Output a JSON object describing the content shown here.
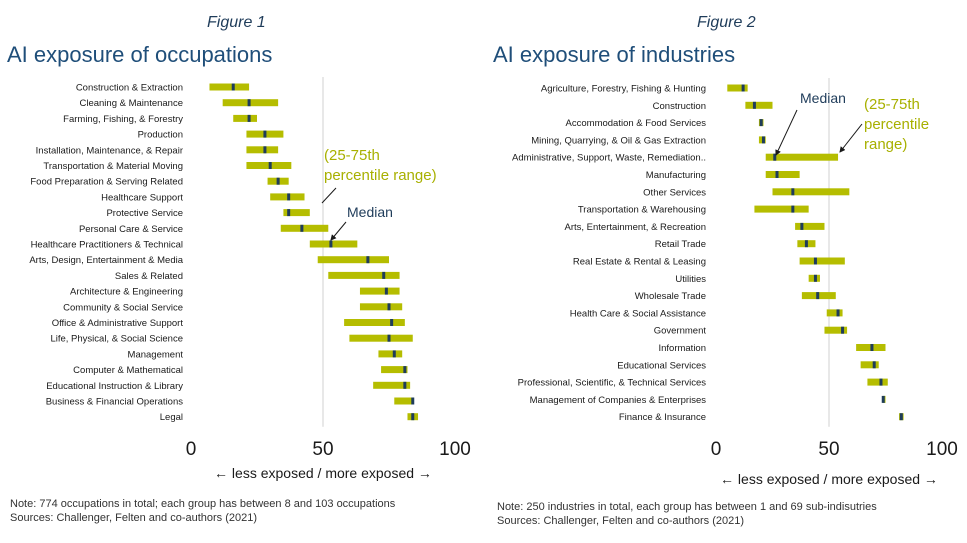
{
  "figures": [
    {
      "figure_label": "Figure 1",
      "title": "AI exposure of occupations",
      "note": "Note: 774 occupations in total; each group has between 8 and 103 occupations",
      "source": "Sources: Challenger, Felten and co-authors (2021)",
      "annotations": {
        "median": "Median",
        "range_line1": "(25-75th",
        "range_line2": "percentile  range)"
      }
    },
    {
      "figure_label": "Figure 2",
      "title": "AI exposure of industries",
      "note": "Note: 250 industries in total, each group has between 1 and 69 sub-indisutries",
      "source": "Sources: Challenger, Felten and co-authors (2021)",
      "annotations": {
        "median": "Median",
        "range_line1": "(25-75th",
        "range_line2": "percentile",
        "range_line3": "range)"
      }
    }
  ],
  "colors": {
    "range_bar": "#b5bd00",
    "median_mark": "#1f3c5a",
    "title": "#1f4e79",
    "annotation_olive": "#a8b000",
    "reference_line": "#d0d0d0"
  },
  "chart_data": [
    {
      "type": "bar",
      "orientation": "horizontal-range",
      "xlabel": "← less exposed  /  more exposed →",
      "xlim": [
        0,
        100
      ],
      "xticks": [
        0,
        50,
        100
      ],
      "reference_line": 50,
      "categories": [
        "Construction & Extraction",
        "Cleaning & Maintenance",
        "Farming, Fishing, & Forestry",
        "Production",
        "Installation, Maintenance, & Repair",
        "Transportation & Material Moving",
        "Food Preparation & Serving Related",
        "Healthcare Support",
        "Protective Service",
        "Personal Care & Service",
        "Healthcare Practitioners & Technical",
        "Arts, Design, Entertainment & Media",
        "Sales & Related",
        "Architecture & Engineering",
        "Community & Social Service",
        "Office & Administrative Support",
        "Life, Physical, & Social Science",
        "Management",
        "Computer & Mathematical",
        "Educational Instruction & Library",
        "Business & Financial Operations",
        "Legal"
      ],
      "series": [
        {
          "name": "25th percentile",
          "values": [
            7,
            12,
            16,
            21,
            21,
            21,
            29,
            30,
            35,
            34,
            45,
            48,
            52,
            64,
            64,
            58,
            60,
            71,
            72,
            69,
            77,
            82
          ]
        },
        {
          "name": "75th percentile",
          "values": [
            22,
            33,
            25,
            35,
            33,
            38,
            37,
            43,
            45,
            52,
            63,
            75,
            79,
            79,
            80,
            81,
            84,
            80,
            82,
            83,
            84,
            86
          ]
        },
        {
          "name": "Median",
          "values": [
            16,
            22,
            22,
            28,
            28,
            30,
            33,
            37,
            37,
            42,
            53,
            67,
            73,
            74,
            75,
            76,
            75,
            77,
            81,
            81,
            84,
            84
          ]
        }
      ]
    },
    {
      "type": "bar",
      "orientation": "horizontal-range",
      "xlabel": "← less exposed  /  more exposed →",
      "xlim": [
        0,
        100
      ],
      "xticks": [
        0,
        50,
        100
      ],
      "reference_line": 50,
      "categories": [
        "Agriculture, Forestry, Fishing & Hunting",
        "Construction",
        "Accommodation & Food Services",
        "Mining, Quarrying, & Oil & Gas Extraction",
        "Administrative, Support, Waste, Remediation..",
        "Manufacturing",
        "Other Services",
        "Transportation & Warehousing",
        "Arts, Entertainment, & Recreation",
        "Retail Trade",
        "Real Estate & Rental & Leasing",
        "Utilities",
        "Wholesale Trade",
        "Health Care & Social Assistance",
        "Government",
        "Information",
        "Educational Services",
        "Professional, Scientific, & Technical Services",
        "Management of Companies & Enterprises",
        "Finance & Insurance"
      ],
      "series": [
        {
          "name": "25th percentile",
          "values": [
            5,
            13,
            19,
            19,
            22,
            22,
            25,
            17,
            35,
            36,
            37,
            41,
            38,
            49,
            48,
            62,
            64,
            67,
            74,
            81
          ]
        },
        {
          "name": "75th percentile",
          "values": [
            14,
            25,
            21,
            22,
            54,
            37,
            59,
            41,
            48,
            44,
            57,
            46,
            53,
            56,
            58,
            75,
            72,
            76,
            75,
            83
          ]
        },
        {
          "name": "Median",
          "values": [
            12,
            17,
            20,
            21,
            26,
            27,
            34,
            34,
            38,
            40,
            44,
            44,
            45,
            54,
            56,
            69,
            70,
            73,
            74,
            82
          ]
        }
      ]
    }
  ]
}
